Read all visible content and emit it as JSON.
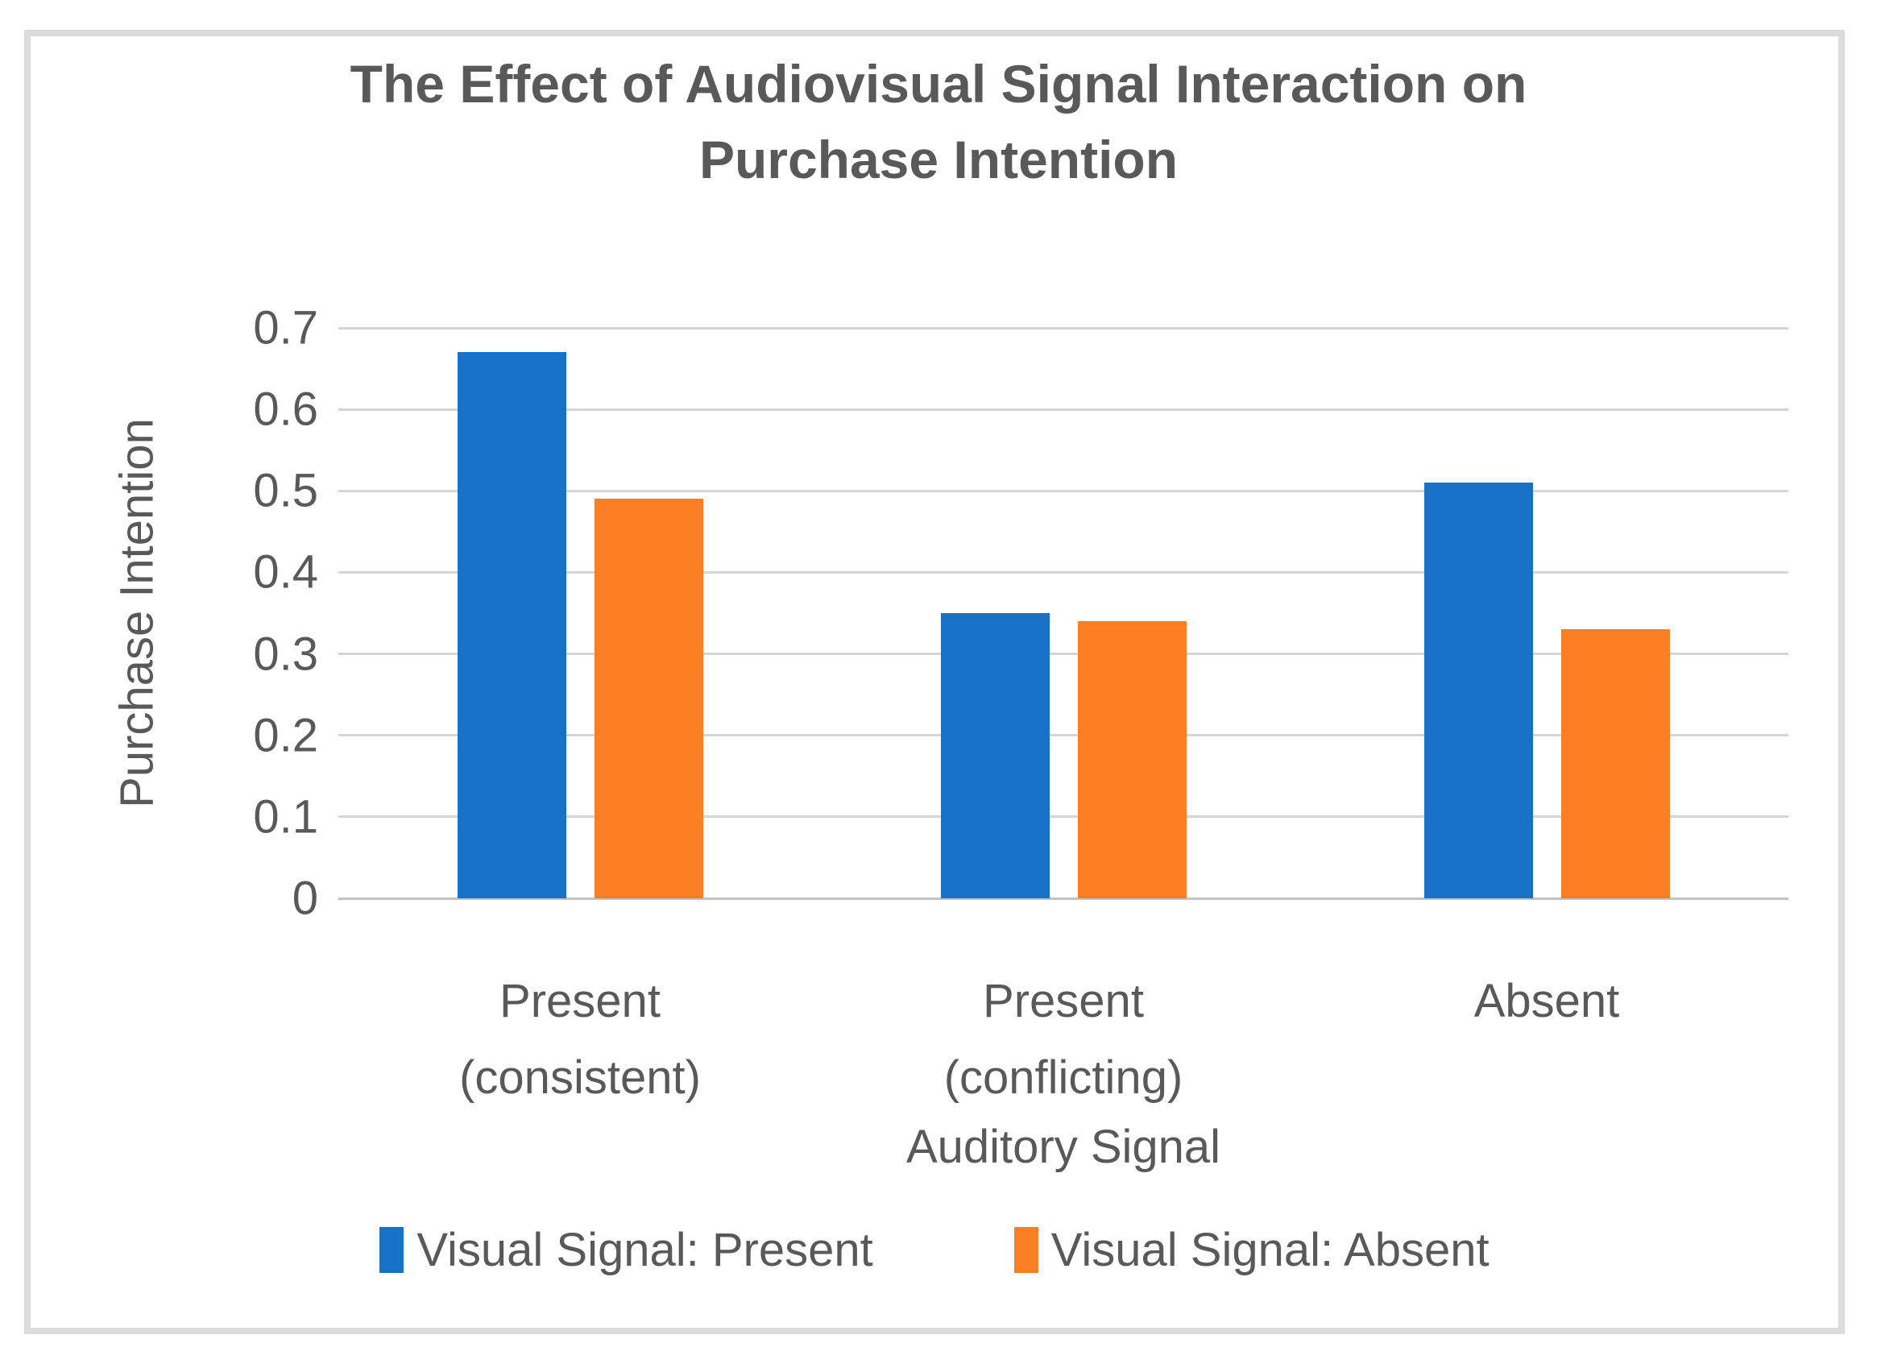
{
  "chart_data": {
    "type": "bar",
    "title": "The Effect of Audiovisual Signal Interaction on Purchase Intention",
    "xlabel": "Auditory Signal",
    "ylabel": "Purchase Intention",
    "categories": [
      "Present\n(consistent)",
      "Present\n(conflicting)",
      "Absent"
    ],
    "series": [
      {
        "name": "Visual Signal: Present",
        "color": "#1771C6",
        "values": [
          0.67,
          0.35,
          0.51
        ]
      },
      {
        "name": "Visual Signal: Absent",
        "color": "#FB7E23",
        "values": [
          0.49,
          0.34,
          0.33
        ]
      }
    ],
    "ylim": [
      0,
      0.7
    ],
    "yticks": [
      0,
      0.1,
      0.2,
      0.3,
      0.4,
      0.5,
      0.6,
      0.7
    ],
    "ytick_labels": [
      "0",
      "0.1",
      "0.2",
      "0.3",
      "0.4",
      "0.5",
      "0.6",
      "0.7"
    ],
    "grid": true,
    "legend_position": "bottom"
  },
  "colors": {
    "text": "#595959",
    "gridline": "#D6D6D6",
    "axis_line": "#C3C3C3",
    "frame_border": "#DBDBDB",
    "background": "#FFFFFF"
  }
}
